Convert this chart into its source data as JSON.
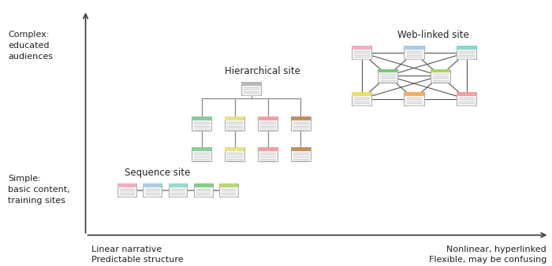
{
  "bg_color": "#ffffff",
  "axis_color": "#444444",
  "y_label_top": "Complex:\neducated\naudiences",
  "y_label_bottom": "Simple:\nbasic content,\ntraining sites",
  "x_label_left": "Linear narrative\nPredictable structure",
  "x_label_right": "Nonlinear, hyperlinked\nFlexible, may be confusing",
  "sequence_label": "Sequence site",
  "hierarchical_label": "Hierarchical site",
  "weblinked_label": "Web-linked site",
  "page_colors_sequence": [
    "#f2aec0",
    "#a8cce8",
    "#98d8d0",
    "#88cc88",
    "#b8d870"
  ],
  "page_colors_hier_root": "#b8b8b8",
  "page_colors_hier_row1": [
    "#88cc99",
    "#e8e088",
    "#f0a0a0",
    "#c09060"
  ],
  "page_colors_hier_row2": [
    "#88cc99",
    "#e8e088",
    "#f0a0a0",
    "#c09060"
  ],
  "web_colors": {
    "tl": "#f2aec0",
    "tc": "#a8cce8",
    "tr": "#88d8d0",
    "ml": "#78c878",
    "mr": "#a8d858",
    "bl": "#e8e060",
    "bc": "#f0b060",
    "br": "#f0a0a0"
  },
  "line_color": "#888888",
  "web_line_color": "#555555",
  "box_fill": "#f2f2f2",
  "box_edge": "#aaaaaa"
}
